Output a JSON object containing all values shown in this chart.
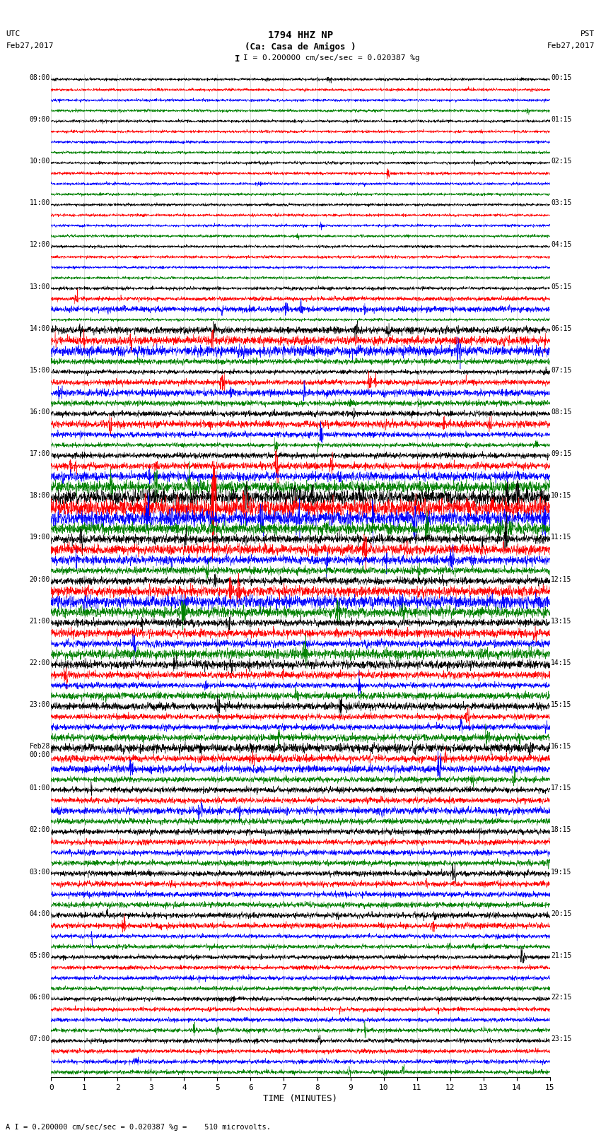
{
  "title_line1": "1794 HHZ NP",
  "title_line2": "(Ca: Casa de Amigos )",
  "scale_text": "I = 0.200000 cm/sec/sec = 0.020387 %g",
  "footer_text": "A I = 0.200000 cm/sec/sec = 0.020387 %g =    510 microvolts.",
  "xlabel": "TIME (MINUTES)",
  "xlim": [
    0,
    15
  ],
  "xticks": [
    0,
    1,
    2,
    3,
    4,
    5,
    6,
    7,
    8,
    9,
    10,
    11,
    12,
    13,
    14,
    15
  ],
  "background_color": "#ffffff",
  "trace_colors": [
    "black",
    "red",
    "blue",
    "green"
  ],
  "num_rows": 96,
  "fig_width": 8.5,
  "fig_height": 16.13,
  "left_times_utc": [
    "08:00",
    "",
    "",
    "",
    "09:00",
    "",
    "",
    "",
    "10:00",
    "",
    "",
    "",
    "11:00",
    "",
    "",
    "",
    "12:00",
    "",
    "",
    "",
    "13:00",
    "",
    "",
    "",
    "14:00",
    "",
    "",
    "",
    "15:00",
    "",
    "",
    "",
    "16:00",
    "",
    "",
    "",
    "17:00",
    "",
    "",
    "",
    "18:00",
    "",
    "",
    "",
    "19:00",
    "",
    "",
    "",
    "20:00",
    "",
    "",
    "",
    "21:00",
    "",
    "",
    "",
    "22:00",
    "",
    "",
    "",
    "23:00",
    "",
    "",
    "",
    "Feb28\n00:00",
    "",
    "",
    "",
    "01:00",
    "",
    "",
    "",
    "02:00",
    "",
    "",
    "",
    "03:00",
    "",
    "",
    "",
    "04:00",
    "",
    "",
    "",
    "05:00",
    "",
    "",
    "",
    "06:00",
    "",
    "",
    "",
    "07:00",
    "",
    "",
    ""
  ],
  "right_times_pst": [
    "00:15",
    "",
    "",
    "",
    "01:15",
    "",
    "",
    "",
    "02:15",
    "",
    "",
    "",
    "03:15",
    "",
    "",
    "",
    "04:15",
    "",
    "",
    "",
    "05:15",
    "",
    "",
    "",
    "06:15",
    "",
    "",
    "",
    "07:15",
    "",
    "",
    "",
    "08:15",
    "",
    "",
    "",
    "09:15",
    "",
    "",
    "",
    "10:15",
    "",
    "",
    "",
    "11:15",
    "",
    "",
    "",
    "12:15",
    "",
    "",
    "",
    "13:15",
    "",
    "",
    "",
    "14:15",
    "",
    "",
    "",
    "15:15",
    "",
    "",
    "",
    "16:15",
    "",
    "",
    "",
    "17:15",
    "",
    "",
    "",
    "18:15",
    "",
    "",
    "",
    "19:15",
    "",
    "",
    "",
    "20:15",
    "",
    "",
    "",
    "21:15",
    "",
    "",
    "",
    "22:15",
    "",
    "",
    "",
    "23:15",
    "",
    "",
    ""
  ],
  "noise_levels": [
    1.0,
    1.0,
    1.0,
    1.0,
    1.0,
    1.0,
    1.0,
    1.0,
    1.0,
    1.0,
    1.0,
    1.0,
    1.0,
    1.0,
    1.0,
    1.0,
    1.0,
    1.0,
    1.0,
    1.0,
    1.2,
    1.5,
    2.0,
    1.0,
    2.5,
    3.0,
    3.5,
    2.0,
    1.5,
    2.0,
    2.5,
    2.0,
    2.0,
    2.5,
    2.0,
    1.5,
    2.0,
    2.5,
    3.0,
    4.0,
    5.0,
    6.0,
    5.0,
    4.0,
    3.0,
    3.5,
    3.0,
    2.5,
    2.5,
    3.5,
    4.5,
    3.5,
    2.5,
    3.0,
    2.5,
    3.5,
    3.0,
    2.5,
    2.0,
    2.5,
    2.5,
    2.0,
    2.0,
    2.5,
    3.0,
    2.5,
    2.5,
    2.0,
    2.0,
    2.0,
    2.5,
    2.0,
    2.0,
    2.0,
    2.0,
    2.0,
    2.0,
    2.0,
    2.0,
    2.0,
    2.0,
    2.0,
    1.5,
    1.5,
    1.5,
    1.5,
    1.5,
    1.5,
    1.5,
    1.5,
    1.5,
    1.5,
    1.5,
    1.5,
    1.5,
    1.5
  ]
}
